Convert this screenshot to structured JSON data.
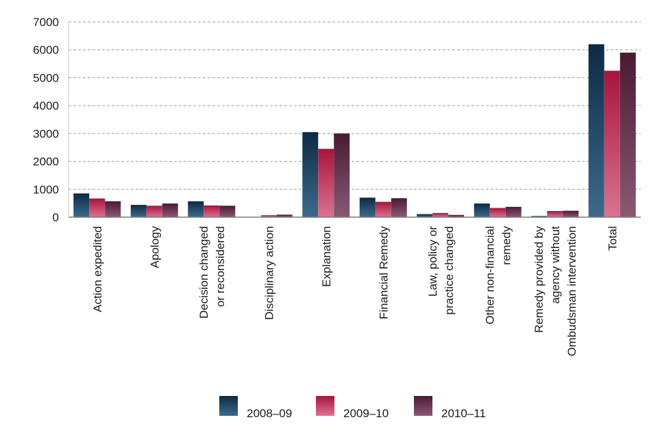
{
  "chart_data": {
    "type": "bar",
    "categories": [
      [
        "Action expedited"
      ],
      [
        "Apology"
      ],
      [
        "Decision changed",
        "or reconsidered"
      ],
      [
        "Disciplinary action"
      ],
      [
        "Explanation"
      ],
      [
        "Financial Remedy"
      ],
      [
        "Law, policy or",
        "practice changed"
      ],
      [
        "Other non-financial",
        "remedy"
      ],
      [
        "Remedy provided by",
        "agency without",
        "Ombudsman intervention"
      ],
      [
        "Total"
      ]
    ],
    "series": [
      {
        "name": "2008–09",
        "color_top": "#0d2a45",
        "color_bottom": "#3d6a8c",
        "values": [
          850,
          440,
          570,
          10,
          3050,
          700,
          110,
          490,
          40,
          6200
        ]
      },
      {
        "name": "2009–10",
        "color_top": "#a8143e",
        "color_bottom": "#d9748f",
        "values": [
          670,
          410,
          420,
          70,
          2450,
          550,
          150,
          330,
          220,
          5250
        ]
      },
      {
        "name": "2010–11",
        "color_top": "#4a1a33",
        "color_bottom": "#8a5a75",
        "values": [
          570,
          490,
          410,
          90,
          3000,
          680,
          80,
          370,
          230,
          5900
        ]
      }
    ],
    "yticks": [
      0,
      1000,
      2000,
      3000,
      4000,
      5000,
      6000,
      7000
    ],
    "ylim": [
      0,
      7000
    ],
    "grid": true,
    "legend_position": "bottom"
  }
}
